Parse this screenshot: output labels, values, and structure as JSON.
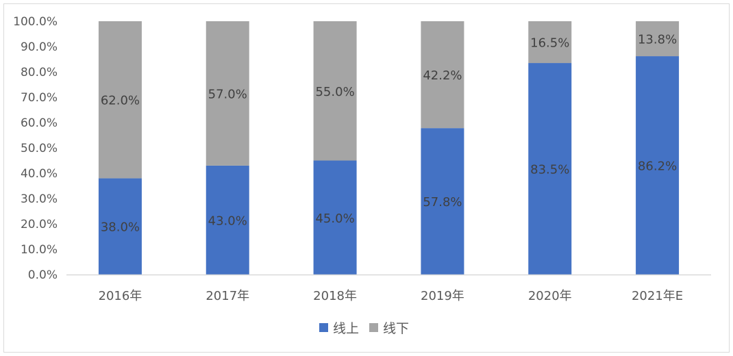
{
  "colors": {
    "online": "#4472C4",
    "offline": "#A5A5A5",
    "axis": "#d9d9d9",
    "text": "#595959"
  },
  "chart_data": {
    "type": "bar",
    "stacked": true,
    "categories": [
      "2016年",
      "2017年",
      "2018年",
      "2019年",
      "2020年",
      "2021年E"
    ],
    "series": [
      {
        "name": "线上",
        "values": [
          38.0,
          43.0,
          45.0,
          57.8,
          83.5,
          86.2
        ],
        "labels": [
          "38.0%",
          "43.0%",
          "45.0%",
          "57.8%",
          "83.5%",
          "86.2%"
        ]
      },
      {
        "name": "线下",
        "values": [
          62.0,
          57.0,
          55.0,
          42.2,
          16.5,
          13.8
        ],
        "labels": [
          "62.0%",
          "57.0%",
          "55.0%",
          "42.2%",
          "16.5%",
          "13.8%"
        ]
      }
    ],
    "ylim": [
      0,
      100
    ],
    "yticks": [
      "0.0%",
      "10.0%",
      "20.0%",
      "30.0%",
      "40.0%",
      "50.0%",
      "60.0%",
      "70.0%",
      "80.0%",
      "90.0%",
      "100.0%"
    ],
    "grid": false,
    "legend": "bottom-center"
  }
}
